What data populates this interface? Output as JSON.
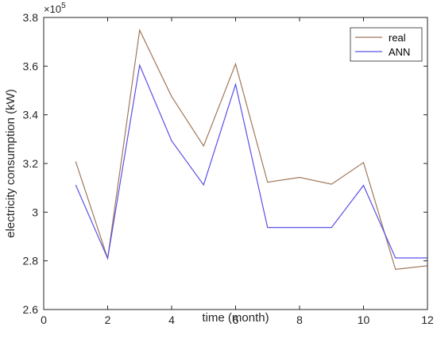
{
  "chart_data": {
    "type": "line",
    "xlabel": "time (month)",
    "ylabel": "electricity consumption (kW)",
    "xlim": [
      0,
      12
    ],
    "ylim": [
      260000,
      380000
    ],
    "xticks": [
      0,
      2,
      4,
      6,
      8,
      10,
      12
    ],
    "xtick_labels": [
      "0",
      "2",
      "4",
      "6",
      "8",
      "10",
      "12"
    ],
    "yticks": [
      260000,
      280000,
      300000,
      320000,
      340000,
      360000,
      380000
    ],
    "ytick_labels": [
      "2.6",
      "2.8",
      "3",
      "3.2",
      "3.4",
      "3.6",
      "3.8"
    ],
    "y_exponent_label": "×10",
    "y_exponent_power": "5",
    "grid": false,
    "legend_position": "top-right",
    "x": [
      1,
      2,
      3,
      4,
      5,
      6,
      7,
      8,
      9,
      10,
      11,
      12
    ],
    "series": [
      {
        "name": "real",
        "color": "#a0785a",
        "values": [
          320800,
          281000,
          374800,
          347500,
          327200,
          360900,
          312300,
          314300,
          311500,
          320400,
          276500,
          278000
        ]
      },
      {
        "name": "ANN",
        "color": "#5a50e6",
        "values": [
          311200,
          281000,
          360400,
          329300,
          311200,
          352500,
          293700,
          293700,
          293700,
          311000,
          281200,
          281200
        ]
      }
    ]
  }
}
